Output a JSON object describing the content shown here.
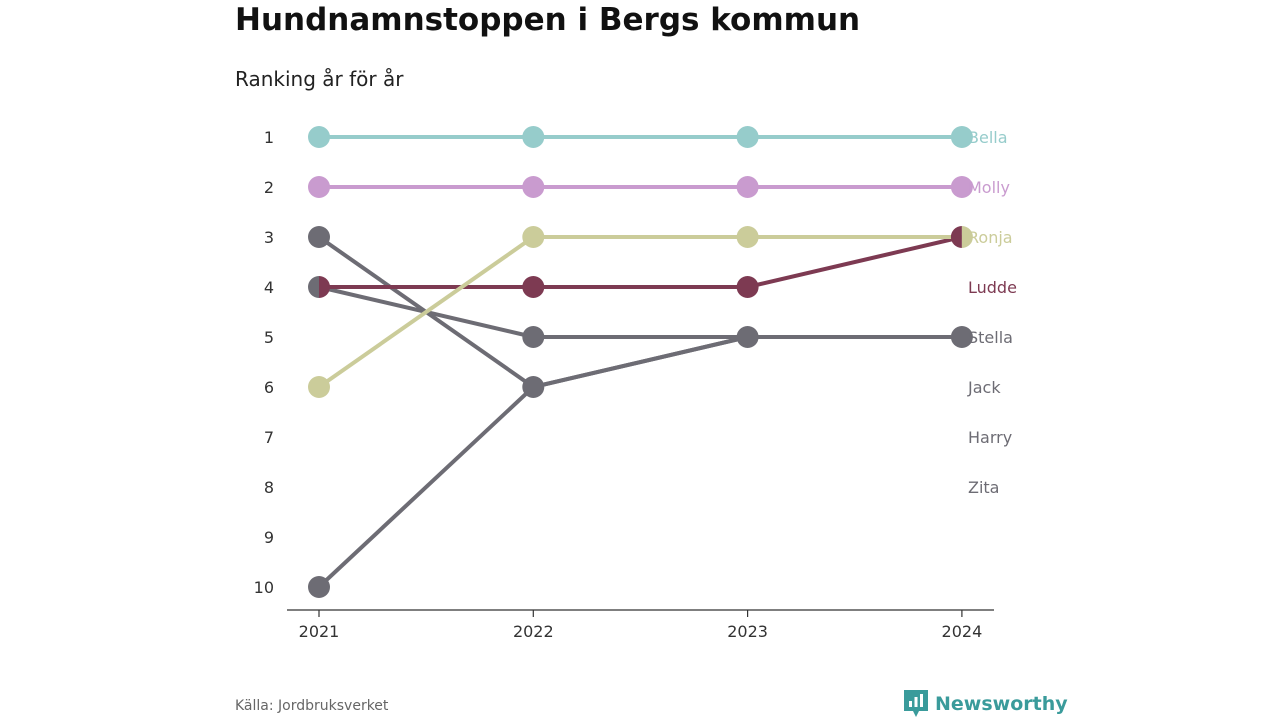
{
  "title": "Hundnamnstoppen i Bergs kommun",
  "subtitle": "Ranking år för år",
  "source": "Källa: Jordbruksverket",
  "brand": {
    "name": "Newsworthy",
    "icon": "newsworthy-logo-icon",
    "color": "#3a9b9b"
  },
  "chart_data": {
    "type": "line",
    "subtype": "bump",
    "title": "Hundnamnstoppen i Bergs kommun",
    "subtitle": "Ranking år för år",
    "x": [
      "2021",
      "2022",
      "2023",
      "2024"
    ],
    "y_ticks": [
      "1",
      "2",
      "3",
      "4",
      "5",
      "6",
      "7",
      "8",
      "9",
      "10"
    ],
    "ylim": [
      1,
      10
    ],
    "y_reversed": true,
    "grid": false,
    "series": [
      {
        "name": "Bella",
        "color": "#96cccb",
        "values": [
          1,
          1,
          1,
          1
        ]
      },
      {
        "name": "Molly",
        "color": "#c99bcf",
        "values": [
          2,
          2,
          2,
          2
        ]
      },
      {
        "name": "Ronja",
        "color": "#cbcc9a",
        "values": [
          6,
          3,
          3,
          3
        ]
      },
      {
        "name": "Ludde",
        "color": "#7d3a52",
        "values": [
          4,
          4,
          4,
          3
        ]
      },
      {
        "name": "Stella",
        "color": "#6d6c74",
        "values": [
          4,
          5,
          5,
          5
        ]
      },
      {
        "name": "Jack",
        "color": "#6d6c74",
        "values": [
          3,
          6,
          5,
          5
        ]
      },
      {
        "name": "Harry",
        "color": "#6d6c74",
        "values": [
          10,
          6,
          5,
          5
        ]
      },
      {
        "name": "Zita",
        "color": "#6d6c74",
        "values": [
          null,
          null,
          null,
          null
        ]
      }
    ]
  }
}
